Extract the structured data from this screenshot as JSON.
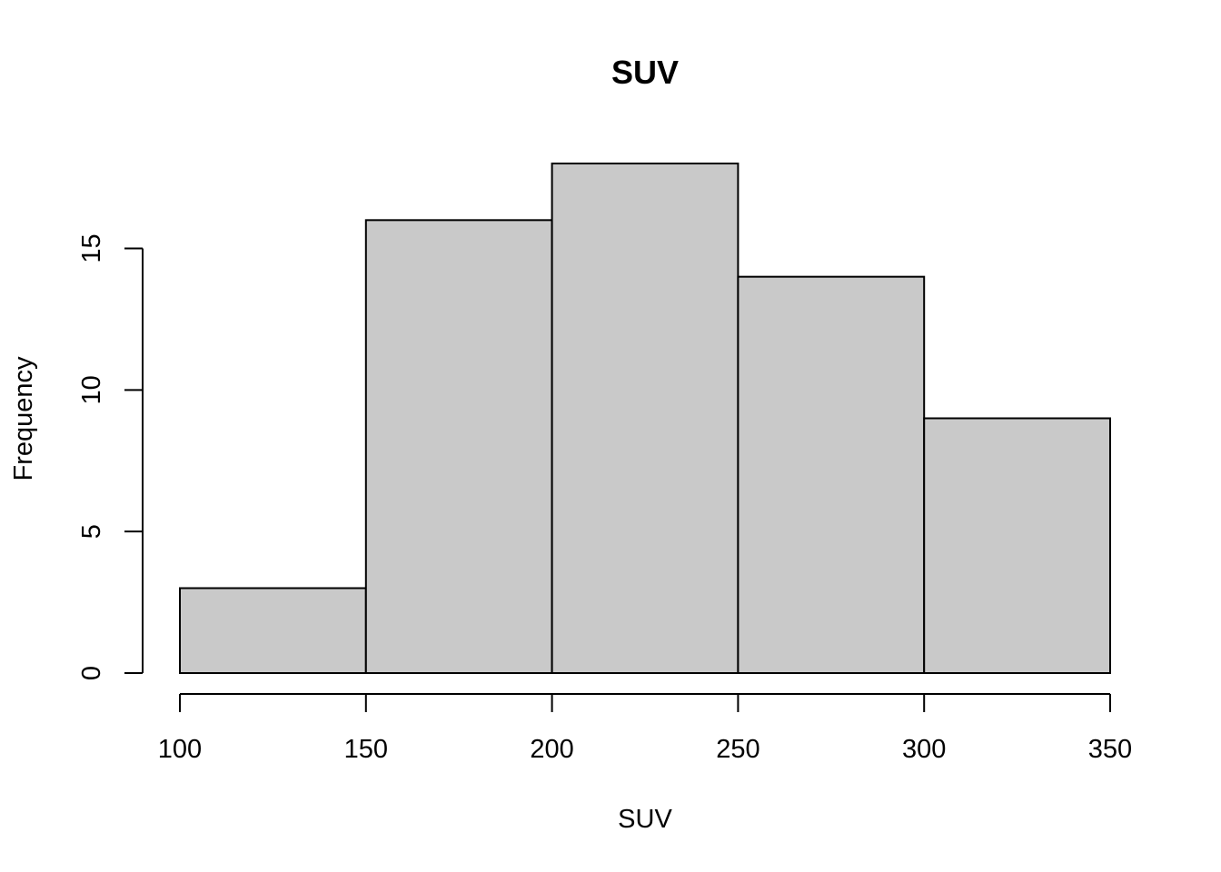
{
  "chart_data": {
    "type": "bar",
    "title": "SUV",
    "xlabel": "SUV",
    "ylabel": "Frequency",
    "bins": [
      {
        "from": 100,
        "to": 150,
        "count": 3
      },
      {
        "from": 150,
        "to": 200,
        "count": 16
      },
      {
        "from": 200,
        "to": 250,
        "count": 18
      },
      {
        "from": 250,
        "to": 300,
        "count": 14
      },
      {
        "from": 300,
        "to": 350,
        "count": 9
      }
    ],
    "x_ticks": [
      100,
      150,
      200,
      250,
      300,
      350
    ],
    "y_ticks": [
      0,
      5,
      10,
      15
    ],
    "xlim": [
      100,
      350
    ],
    "ylim": [
      0,
      18
    ],
    "bar_color": "#c9c9c9",
    "grid": false,
    "legend": "none"
  }
}
